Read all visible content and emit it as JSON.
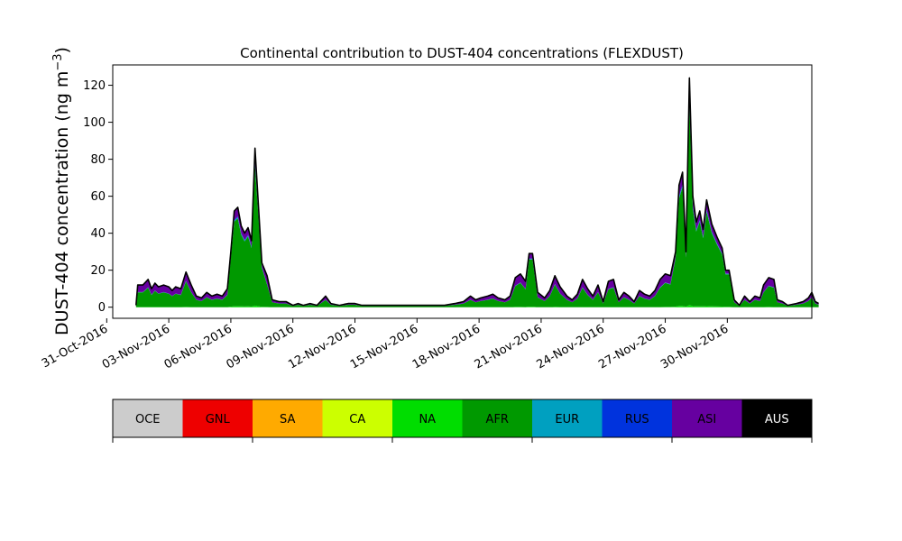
{
  "chart_data": {
    "type": "area",
    "stacked": true,
    "title": "Continental contribution to DUST-404 concentrations (FLEXDUST)",
    "ylabel_main": "DUST-404 concentration (ng m",
    "ylabel_exp": "−3",
    "ylabel_close": ")",
    "ylim": [
      -6,
      131
    ],
    "yticks": [
      0,
      20,
      40,
      60,
      80,
      100,
      120
    ],
    "x_range": [
      "2016-10-31T07:00",
      "2016-12-04T02:00"
    ],
    "xticks": [
      {
        "date": "2016-10-31",
        "label": "31-Oct-2016"
      },
      {
        "date": "2016-11-03",
        "label": "03-Nov-2016"
      },
      {
        "date": "2016-11-06",
        "label": "06-Nov-2016"
      },
      {
        "date": "2016-11-09",
        "label": "09-Nov-2016"
      },
      {
        "date": "2016-11-12",
        "label": "12-Nov-2016"
      },
      {
        "date": "2016-11-15",
        "label": "15-Nov-2016"
      },
      {
        "date": "2016-11-18",
        "label": "18-Nov-2016"
      },
      {
        "date": "2016-11-21",
        "label": "21-Nov-2016"
      },
      {
        "date": "2016-11-24",
        "label": "24-Nov-2016"
      },
      {
        "date": "2016-11-27",
        "label": "27-Nov-2016"
      },
      {
        "date": "2016-11-30",
        "label": "30-Nov-2016"
      }
    ],
    "grid": false,
    "total_points": [
      [
        "2016-11-01T10:00",
        1
      ],
      [
        "2016-11-01T12:00",
        12
      ],
      [
        "2016-11-01T18:00",
        12
      ],
      [
        "2016-11-02T00:00",
        15
      ],
      [
        "2016-11-02T04:00",
        10
      ],
      [
        "2016-11-02T08:00",
        13
      ],
      [
        "2016-11-02T12:00",
        11
      ],
      [
        "2016-11-02T18:00",
        12
      ],
      [
        "2016-11-03T00:00",
        11
      ],
      [
        "2016-11-03T04:00",
        9
      ],
      [
        "2016-11-03T08:00",
        11
      ],
      [
        "2016-11-03T14:00",
        10
      ],
      [
        "2016-11-03T20:00",
        19
      ],
      [
        "2016-11-04T02:00",
        12
      ],
      [
        "2016-11-04T08:00",
        6
      ],
      [
        "2016-11-04T14:00",
        5
      ],
      [
        "2016-11-04T20:00",
        8
      ],
      [
        "2016-11-05T02:00",
        6
      ],
      [
        "2016-11-05T08:00",
        7
      ],
      [
        "2016-11-05T14:00",
        6
      ],
      [
        "2016-11-05T20:00",
        10
      ],
      [
        "2016-11-06T00:00",
        30
      ],
      [
        "2016-11-06T04:00",
        52
      ],
      [
        "2016-11-06T08:00",
        54
      ],
      [
        "2016-11-06T12:00",
        44
      ],
      [
        "2016-11-06T16:00",
        40
      ],
      [
        "2016-11-06T20:00",
        43
      ],
      [
        "2016-11-07T00:00",
        36
      ],
      [
        "2016-11-07T04:00",
        86
      ],
      [
        "2016-11-07T08:00",
        55
      ],
      [
        "2016-11-07T12:00",
        24
      ],
      [
        "2016-11-07T18:00",
        17
      ],
      [
        "2016-11-08T00:00",
        4
      ],
      [
        "2016-11-08T08:00",
        3
      ],
      [
        "2016-11-08T16:00",
        3
      ],
      [
        "2016-11-09T00:00",
        1
      ],
      [
        "2016-11-09T06:00",
        2
      ],
      [
        "2016-11-09T12:00",
        1
      ],
      [
        "2016-11-09T20:00",
        2
      ],
      [
        "2016-11-10T04:00",
        1
      ],
      [
        "2016-11-10T14:00",
        6
      ],
      [
        "2016-11-10T20:00",
        2
      ],
      [
        "2016-11-11T06:00",
        1
      ],
      [
        "2016-11-11T16:00",
        2
      ],
      [
        "2016-11-12T00:00",
        2
      ],
      [
        "2016-11-12T08:00",
        1
      ],
      [
        "2016-11-12T20:00",
        1
      ],
      [
        "2016-11-13T08:00",
        1
      ],
      [
        "2016-11-13T20:00",
        1
      ],
      [
        "2016-11-14T08:00",
        1
      ],
      [
        "2016-11-14T20:00",
        1
      ],
      [
        "2016-11-15T08:00",
        1
      ],
      [
        "2016-11-15T20:00",
        1
      ],
      [
        "2016-11-16T08:00",
        1
      ],
      [
        "2016-11-16T20:00",
        2
      ],
      [
        "2016-11-17T06:00",
        3
      ],
      [
        "2016-11-17T14:00",
        6
      ],
      [
        "2016-11-17T20:00",
        4
      ],
      [
        "2016-11-18T02:00",
        5
      ],
      [
        "2016-11-18T10:00",
        6
      ],
      [
        "2016-11-18T16:00",
        7
      ],
      [
        "2016-11-18T22:00",
        5
      ],
      [
        "2016-11-19T06:00",
        4
      ],
      [
        "2016-11-19T12:00",
        6
      ],
      [
        "2016-11-19T18:00",
        16
      ],
      [
        "2016-11-20T00:00",
        18
      ],
      [
        "2016-11-20T06:00",
        14
      ],
      [
        "2016-11-20T10:00",
        29
      ],
      [
        "2016-11-20T14:00",
        29
      ],
      [
        "2016-11-20T20:00",
        8
      ],
      [
        "2016-11-21T04:00",
        5
      ],
      [
        "2016-11-21T10:00",
        9
      ],
      [
        "2016-11-21T16:00",
        17
      ],
      [
        "2016-11-21T22:00",
        11
      ],
      [
        "2016-11-22T06:00",
        6
      ],
      [
        "2016-11-22T12:00",
        4
      ],
      [
        "2016-11-22T18:00",
        7
      ],
      [
        "2016-11-23T00:00",
        15
      ],
      [
        "2016-11-23T06:00",
        10
      ],
      [
        "2016-11-23T12:00",
        6
      ],
      [
        "2016-11-23T18:00",
        12
      ],
      [
        "2016-11-24T00:00",
        3
      ],
      [
        "2016-11-24T06:00",
        14
      ],
      [
        "2016-11-24T12:00",
        15
      ],
      [
        "2016-11-24T18:00",
        4
      ],
      [
        "2016-11-25T00:00",
        8
      ],
      [
        "2016-11-25T06:00",
        6
      ],
      [
        "2016-11-25T12:00",
        3
      ],
      [
        "2016-11-25T18:00",
        9
      ],
      [
        "2016-11-26T00:00",
        7
      ],
      [
        "2016-11-26T06:00",
        6
      ],
      [
        "2016-11-26T12:00",
        9
      ],
      [
        "2016-11-26T18:00",
        15
      ],
      [
        "2016-11-27T00:00",
        18
      ],
      [
        "2016-11-27T06:00",
        17
      ],
      [
        "2016-11-27T12:00",
        30
      ],
      [
        "2016-11-27T16:00",
        66
      ],
      [
        "2016-11-27T20:00",
        73
      ],
      [
        "2016-11-28T00:00",
        30
      ],
      [
        "2016-11-28T04:00",
        124
      ],
      [
        "2016-11-28T08:00",
        60
      ],
      [
        "2016-11-28T12:00",
        46
      ],
      [
        "2016-11-28T16:00",
        52
      ],
      [
        "2016-11-28T20:00",
        42
      ],
      [
        "2016-11-29T00:00",
        58
      ],
      [
        "2016-11-29T06:00",
        45
      ],
      [
        "2016-11-29T12:00",
        38
      ],
      [
        "2016-11-29T18:00",
        32
      ],
      [
        "2016-11-29T22:00",
        20
      ],
      [
        "2016-11-30T02:00",
        20
      ],
      [
        "2016-11-30T08:00",
        4
      ],
      [
        "2016-11-30T14:00",
        1
      ],
      [
        "2016-11-30T20:00",
        6
      ],
      [
        "2016-12-01T02:00",
        3
      ],
      [
        "2016-12-01T08:00",
        6
      ],
      [
        "2016-12-01T14:00",
        5
      ],
      [
        "2016-12-01T18:00",
        12
      ],
      [
        "2016-12-02T00:00",
        16
      ],
      [
        "2016-12-02T06:00",
        15
      ],
      [
        "2016-12-02T10:00",
        4
      ],
      [
        "2016-12-02T16:00",
        3
      ],
      [
        "2016-12-02T22:00",
        1
      ],
      [
        "2016-12-03T08:00",
        2
      ],
      [
        "2016-12-03T16:00",
        3
      ],
      [
        "2016-12-03T22:00",
        5
      ],
      [
        "2016-12-04T02:00",
        8
      ],
      [
        "2016-12-04T06:00",
        3
      ],
      [
        "2016-12-04T10:00",
        2
      ]
    ],
    "stack_shares": [
      {
        "name": "NA",
        "share": 0.01,
        "max": 1.5,
        "color": "#00dd00"
      },
      {
        "name": "AFR",
        "share": 0.88,
        "color": "#009900"
      },
      {
        "name": "EUR",
        "share": 0.01,
        "color": "#00a0c0"
      },
      {
        "name": "RUS",
        "share": 0.01,
        "color": "#0033dd"
      },
      {
        "name": "ASI",
        "share": 0.08,
        "color": "#6600a0"
      },
      {
        "name": "AUS",
        "share": 0.01,
        "color": "#000000"
      }
    ],
    "low_value_asi_extra": 4,
    "legend": [
      {
        "name": "OCE",
        "color": "#cccccc",
        "text_color": "#000000"
      },
      {
        "name": "GNL",
        "color": "#ee0000",
        "text_color": "#000000"
      },
      {
        "name": "SA",
        "color": "#ffaa00",
        "text_color": "#000000"
      },
      {
        "name": "CA",
        "color": "#ccff00",
        "text_color": "#000000"
      },
      {
        "name": "NA",
        "color": "#00dd00",
        "text_color": "#000000"
      },
      {
        "name": "AFR",
        "color": "#009900",
        "text_color": "#000000"
      },
      {
        "name": "EUR",
        "color": "#00a0c0",
        "text_color": "#000000"
      },
      {
        "name": "RUS",
        "color": "#0033dd",
        "text_color": "#000000"
      },
      {
        "name": "ASI",
        "color": "#6600a0",
        "text_color": "#000000"
      },
      {
        "name": "AUS",
        "color": "#000000",
        "text_color": "#ffffff"
      }
    ],
    "legend_placement": "below"
  }
}
